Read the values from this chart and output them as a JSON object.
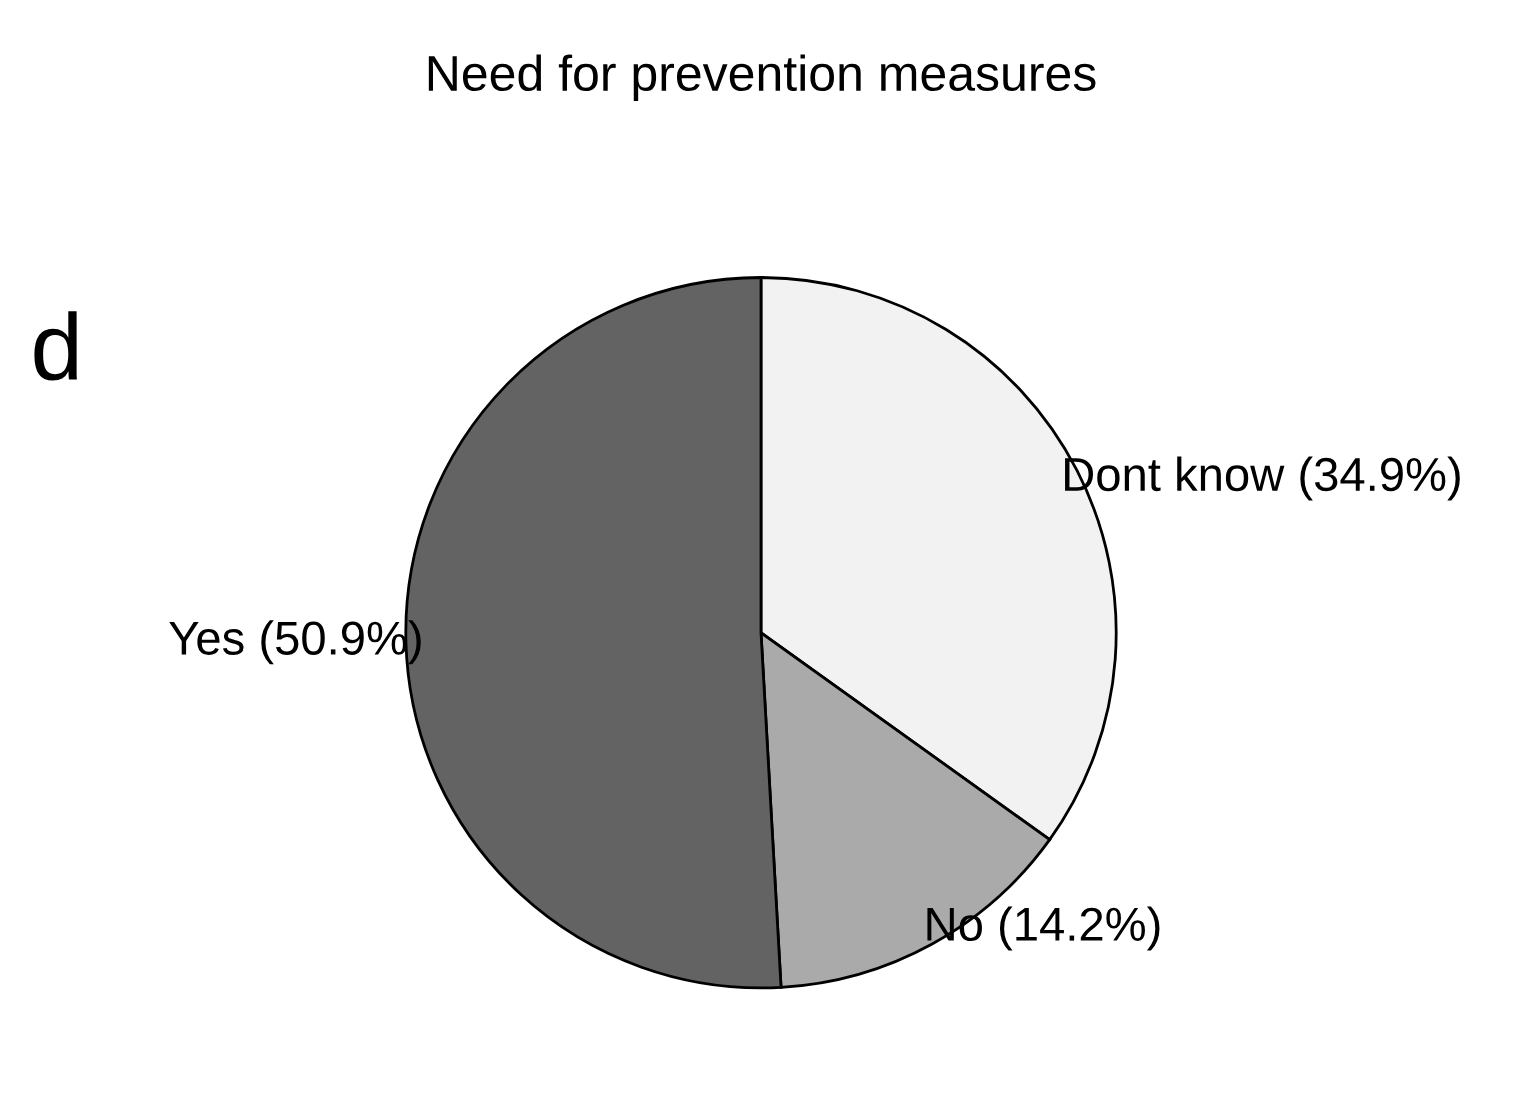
{
  "chart_data": {
    "type": "pie",
    "title": "Need for prevention measures",
    "categories": [
      "Dont know (34.9%)",
      "No (14.2%)",
      "Yes (50.9%)"
    ],
    "values": [
      34.9,
      14.2,
      50.9
    ],
    "colors": [
      "#f2f2f2",
      "#aaaaaa",
      "#636363"
    ],
    "annotations": [
      "d"
    ]
  }
}
